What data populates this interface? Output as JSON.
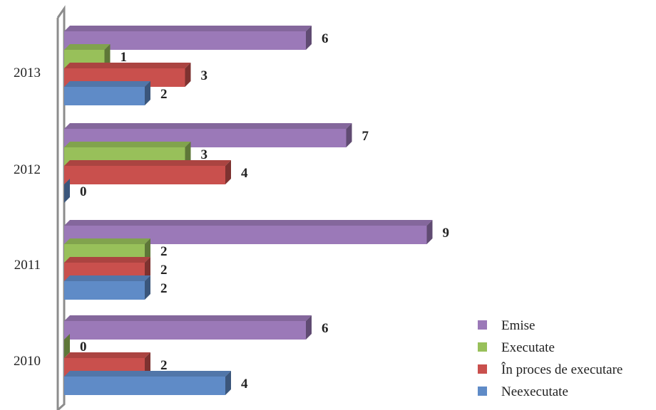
{
  "chart_data": {
    "type": "bar",
    "orientation": "horizontal",
    "three_d": true,
    "categories": [
      "2013",
      "2012",
      "2011",
      "2010"
    ],
    "series": [
      {
        "name": "Emise",
        "values": [
          6,
          7,
          9,
          6
        ],
        "color": "#9B79B8"
      },
      {
        "name": "Executate",
        "values": [
          1,
          3,
          2,
          0
        ],
        "color": "#98C05A"
      },
      {
        "name": "În proces de executare",
        "values": [
          3,
          4,
          2,
          2
        ],
        "color": "#C9504D"
      },
      {
        "name": "Neexecutate",
        "values": [
          2,
          0,
          2,
          4
        ],
        "color": "#5F8BC7"
      }
    ],
    "xlim": [
      0,
      10
    ],
    "grid": false,
    "legend_position": "bottom-right",
    "title": "",
    "xlabel": "",
    "ylabel": ""
  }
}
